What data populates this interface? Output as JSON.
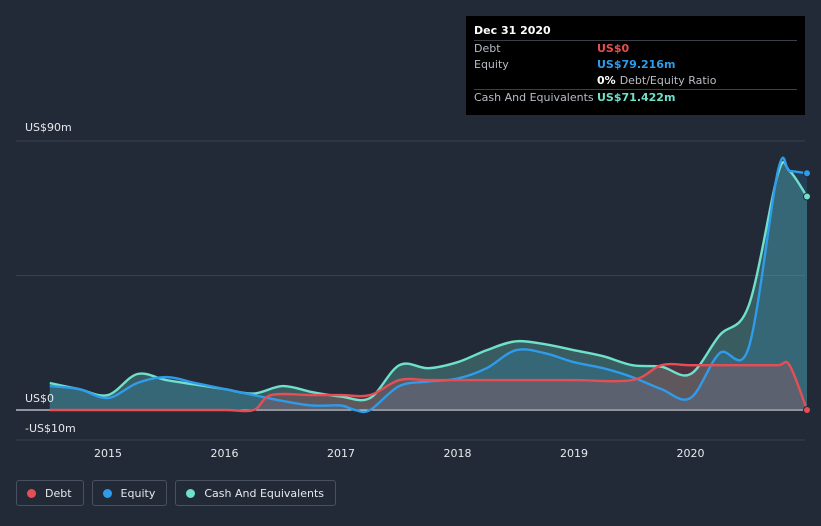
{
  "tooltip": {
    "date": "Dec 31 2020",
    "debt_label": "Debt",
    "debt_value": "US$0",
    "equity_label": "Equity",
    "equity_value": "US$79.216m",
    "ratio_pct": "0%",
    "ratio_label": "Debt/Equity Ratio",
    "cash_label": "Cash And Equivalents",
    "cash_value": "US$71.422m"
  },
  "legend": {
    "debt": "Debt",
    "equity": "Equity",
    "cash": "Cash And Equivalents"
  },
  "colors": {
    "debt": "#e64e55",
    "equity": "#2f9bea",
    "cash": "#6fe0ca",
    "background": "#232a37"
  },
  "chart_data": {
    "type": "area",
    "ylim": [
      -10,
      90
    ],
    "xlim": [
      2014.5,
      2021.0
    ],
    "y_tick_labels": [
      "US$90m",
      "US$0",
      "-US$10m"
    ],
    "y_ticks": [
      90,
      0,
      -10
    ],
    "x_ticks": [
      2015,
      2016,
      2017,
      2018,
      2019,
      2020
    ],
    "x_tick_labels": [
      "2015",
      "2016",
      "2017",
      "2018",
      "2019",
      "2020"
    ],
    "grid": true,
    "legend_position": "bottom-left",
    "series": [
      {
        "name": "Debt",
        "x": [
          2014.5,
          2014.75,
          2015.0,
          2015.5,
          2016.0,
          2016.25,
          2016.4,
          2016.75,
          2017.0,
          2017.25,
          2017.5,
          2017.75,
          2018.0,
          2018.5,
          2019.0,
          2019.5,
          2019.75,
          2020.0,
          2020.25,
          2020.5,
          2020.75,
          2020.85,
          2021.0
        ],
        "values": [
          0,
          0,
          0,
          0,
          0,
          0,
          5,
          5,
          5,
          5,
          10,
          10,
          10,
          10,
          10,
          10,
          15,
          15,
          15,
          15,
          15,
          15,
          0
        ]
      },
      {
        "name": "Equity",
        "x": [
          2014.5,
          2014.75,
          2015.0,
          2015.25,
          2015.5,
          2015.75,
          2016.0,
          2016.25,
          2016.5,
          2016.75,
          2017.0,
          2017.12,
          2017.25,
          2017.5,
          2017.75,
          2018.0,
          2018.25,
          2018.5,
          2018.75,
          2019.0,
          2019.25,
          2019.5,
          2019.75,
          2020.0,
          2020.25,
          2020.5,
          2020.75,
          2020.85,
          2021.0
        ],
        "values": [
          8,
          7,
          4,
          9,
          11,
          9,
          7,
          5,
          3,
          1.5,
          1.5,
          0,
          0,
          8,
          9.5,
          10.5,
          14,
          20,
          19,
          16,
          14,
          11,
          7,
          4,
          19,
          21,
          80,
          80,
          79.216
        ]
      },
      {
        "name": "Cash And Equivalents",
        "x": [
          2014.5,
          2014.75,
          2015.0,
          2015.25,
          2015.5,
          2015.75,
          2016.0,
          2016.25,
          2016.5,
          2016.75,
          2017.0,
          2017.25,
          2017.5,
          2017.75,
          2018.0,
          2018.25,
          2018.5,
          2018.75,
          2019.0,
          2019.25,
          2019.5,
          2019.75,
          2020.0,
          2020.25,
          2020.5,
          2020.75,
          2020.85,
          2021.0
        ],
        "values": [
          9,
          7,
          5,
          12,
          10,
          8.5,
          7,
          5.5,
          8,
          6,
          4.5,
          4,
          15,
          14,
          16,
          20,
          23,
          22,
          20,
          18,
          15,
          14.5,
          12,
          25,
          35,
          79,
          80,
          71.422
        ]
      }
    ]
  }
}
